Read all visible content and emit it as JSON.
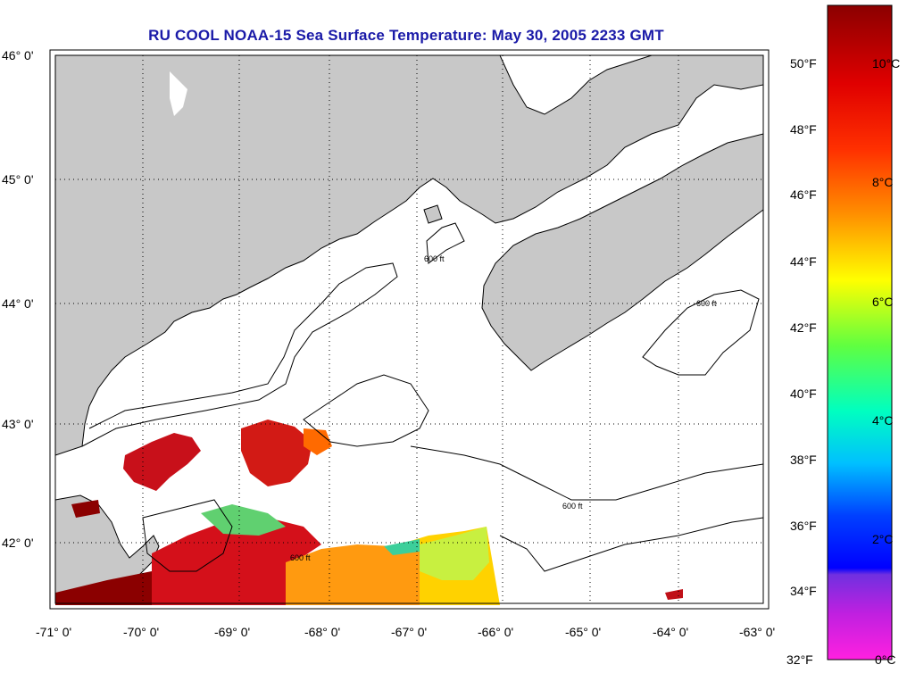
{
  "title": "RU COOL  NOAA-15  Sea Surface Temperature:  May 30, 2005 2233 GMT",
  "map": {
    "lat_labels": [
      "46° 0'",
      "45° 0'",
      "44° 0'",
      "43° 0'",
      "42° 0'"
    ],
    "lon_labels": [
      "-71° 0'",
      "-70° 0'",
      "-69° 0'",
      "-68° 0'",
      "-67° 0'",
      "-66° 0'",
      "-65° 0'",
      "-64° 0'",
      "-63° 0'"
    ],
    "contour_label": "600 ft",
    "land_color": "#c8c8c8",
    "missing_color": "#ffffff"
  },
  "colorbar": {
    "fahrenheit_labels": [
      "50°F",
      "48°F",
      "46°F",
      "44°F",
      "42°F",
      "40°F",
      "38°F",
      "36°F",
      "34°F",
      "32°F"
    ],
    "celsius_labels": [
      "10°C",
      "8°C",
      "6°C",
      "4°C",
      "2°C",
      "0°C"
    ],
    "colors": [
      "#8b0000",
      "#ff0000",
      "#ff8000",
      "#ffff00",
      "#00ff80",
      "#00c0ff",
      "#0000ff",
      "#8000ff",
      "#ff00ff"
    ]
  }
}
